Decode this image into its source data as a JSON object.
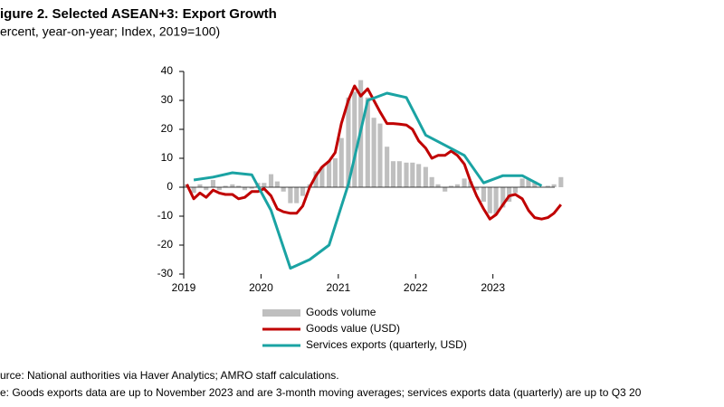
{
  "chart_data": {
    "type": "combo",
    "title": "igure 2. Selected ASEAN+3: Export Growth",
    "subtitle": "ercent, year-on-year; Index, 2019=100)",
    "source": "urce: National authorities via Haver Analytics; AMRO staff calculations.",
    "note": "e: Goods exports data are up to November 2023 and are 3-month moving averages; services exports data (quarterly) are up to Q3 20",
    "x": [
      2019.04,
      2019.13,
      2019.21,
      2019.29,
      2019.38,
      2019.46,
      2019.54,
      2019.63,
      2019.71,
      2019.79,
      2019.88,
      2019.96,
      2020.04,
      2020.13,
      2020.21,
      2020.29,
      2020.38,
      2020.46,
      2020.54,
      2020.63,
      2020.71,
      2020.79,
      2020.88,
      2020.96,
      2021.04,
      2021.13,
      2021.21,
      2021.29,
      2021.38,
      2021.46,
      2021.54,
      2021.63,
      2021.71,
      2021.79,
      2021.88,
      2021.96,
      2022.04,
      2022.13,
      2022.21,
      2022.29,
      2022.38,
      2022.46,
      2022.54,
      2022.63,
      2022.71,
      2022.79,
      2022.88,
      2022.96,
      2023.04,
      2023.13,
      2023.21,
      2023.29,
      2023.38,
      2023.46,
      2023.54,
      2023.63,
      2023.71,
      2023.79,
      2023.88
    ],
    "series": [
      {
        "name": "Goods volume",
        "type": "bar",
        "color": "#bfbfbf",
        "values": [
          1,
          -2,
          1,
          -1,
          2.5,
          -1,
          0.5,
          1,
          0.5,
          -1,
          -0.5,
          1.5,
          1.5,
          4.5,
          2,
          -1.5,
          -5.5,
          -5.5,
          -3,
          1,
          5.5,
          7,
          9,
          10,
          17,
          31,
          33,
          37,
          31,
          24,
          22,
          14,
          9,
          9,
          8.5,
          8.5,
          8,
          7,
          3.5,
          1,
          -1.5,
          0.5,
          1,
          3,
          2,
          -1,
          -5,
          -9,
          -9.5,
          -7,
          -5,
          -2,
          3,
          3,
          2,
          0,
          0.5,
          1,
          3.5
        ]
      },
      {
        "name": "Goods value (USD)",
        "type": "line",
        "color": "#c00000",
        "values": [
          1,
          -4,
          -2,
          -3.5,
          -1,
          -2,
          -2.5,
          -2.5,
          -4,
          -3.5,
          -1.5,
          -1.5,
          -0.5,
          -3,
          -7.5,
          -8.5,
          -9,
          -9,
          -6.5,
          0,
          4,
          7,
          9,
          12,
          22,
          30,
          35,
          31.5,
          34,
          30,
          26,
          22,
          22,
          21.8,
          21.5,
          20,
          16,
          13.5,
          10,
          11,
          11,
          12.5,
          11,
          8,
          2,
          -3,
          -7.5,
          -11,
          -9.5,
          -6,
          -3,
          -2.5,
          -4,
          -8,
          -10.5,
          -11,
          -10.5,
          -9,
          -6
        ]
      },
      {
        "name": "Services exports (quarterly, USD)",
        "type": "line",
        "color": "#1aa3a3",
        "x": [
          2019.13,
          2019.38,
          2019.63,
          2019.88,
          2020.13,
          2020.38,
          2020.63,
          2020.88,
          2021.13,
          2021.38,
          2021.63,
          2021.88,
          2022.13,
          2022.38,
          2022.63,
          2022.88,
          2023.13,
          2023.38,
          2023.63
        ],
        "values": [
          2.5,
          3.5,
          5,
          4.3,
          -8,
          -28,
          -25,
          -20,
          1,
          30,
          32.5,
          31,
          18,
          14.5,
          11,
          1.5,
          4,
          4,
          0.5
        ]
      }
    ],
    "xlim": [
      2019,
      2023.8
    ],
    "xticks": [
      2019,
      2020,
      2021,
      2022,
      2023
    ],
    "ylim": [
      -30,
      40
    ],
    "yticks": [
      -30,
      -20,
      -10,
      0,
      10,
      20,
      30,
      40
    ],
    "grid": false
  }
}
